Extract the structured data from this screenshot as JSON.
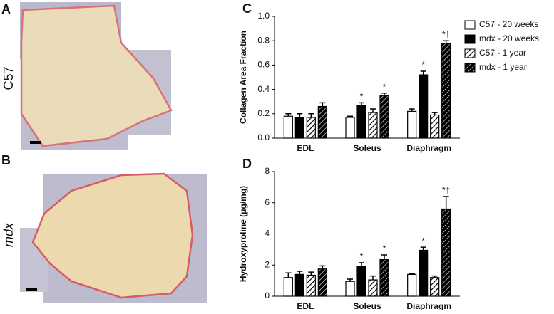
{
  "images": [
    {
      "panel": "A",
      "label": "C57"
    },
    {
      "panel": "B",
      "label": "mdx"
    }
  ],
  "chart_data": [
    {
      "type": "bar",
      "panel": "C",
      "ylabel": "Collagen Area Fraction",
      "categories": [
        "EDL",
        "Soleus",
        "Diaphragm"
      ],
      "ylim": [
        0,
        1.0
      ],
      "yticks": [
        {
          "value": 0,
          "label": "0.0"
        },
        0.2,
        0.4,
        0.6,
        0.8,
        {
          "value": 1.0,
          "label": "1.0"
        }
      ],
      "series": [
        {
          "name": "C57 - 20 weeks",
          "color": "#ffffff",
          "pattern": "solid",
          "values": [
            0.18,
            0.17,
            0.22
          ],
          "errors": [
            0.02,
            0.01,
            0.02
          ],
          "annotations": [
            null,
            null,
            null
          ]
        },
        {
          "name": "mdx - 20 weeks",
          "color": "#000000",
          "pattern": "solid",
          "values": [
            0.17,
            0.27,
            0.52
          ],
          "errors": [
            0.03,
            0.02,
            0.03
          ],
          "annotations": [
            null,
            "*",
            "*"
          ]
        },
        {
          "name": "C57 - 1 year",
          "color": "#ffffff",
          "pattern": "hatch",
          "values": [
            0.17,
            0.21,
            0.19
          ],
          "errors": [
            0.03,
            0.03,
            0.02
          ],
          "annotations": [
            null,
            null,
            null
          ]
        },
        {
          "name": "mdx - 1 year",
          "color": "#000000",
          "pattern": "hatch",
          "values": [
            0.26,
            0.35,
            0.78
          ],
          "errors": [
            0.03,
            0.02,
            0.02
          ],
          "annotations": [
            null,
            "*",
            "*†"
          ]
        }
      ]
    },
    {
      "type": "bar",
      "panel": "D",
      "ylabel": "Hydroxyproline  (μg/mg)",
      "categories": [
        "EDL",
        "Soleus",
        "Diaphragm"
      ],
      "ylim": [
        0,
        8
      ],
      "yticks": [
        0,
        2,
        4,
        6,
        8
      ],
      "series": [
        {
          "color": "#ffffff",
          "pattern": "solid",
          "values": [
            1.2,
            0.95,
            1.4
          ],
          "errors": [
            0.3,
            0.15,
            0.05
          ],
          "annotations": [
            null,
            null,
            null
          ]
        },
        {
          "color": "#000000",
          "pattern": "solid",
          "values": [
            1.4,
            1.9,
            2.95
          ],
          "errors": [
            0.2,
            0.25,
            0.2
          ],
          "annotations": [
            null,
            "*",
            "*"
          ]
        },
        {
          "color": "#ffffff",
          "pattern": "hatch",
          "values": [
            1.35,
            1.05,
            1.2
          ],
          "errors": [
            0.2,
            0.25,
            0.1
          ],
          "annotations": [
            null,
            null,
            null
          ]
        },
        {
          "color": "#000000",
          "pattern": "hatch",
          "values": [
            1.75,
            2.35,
            5.6
          ],
          "errors": [
            0.2,
            0.3,
            0.8
          ],
          "annotations": [
            null,
            "*",
            "*†"
          ]
        }
      ]
    }
  ]
}
